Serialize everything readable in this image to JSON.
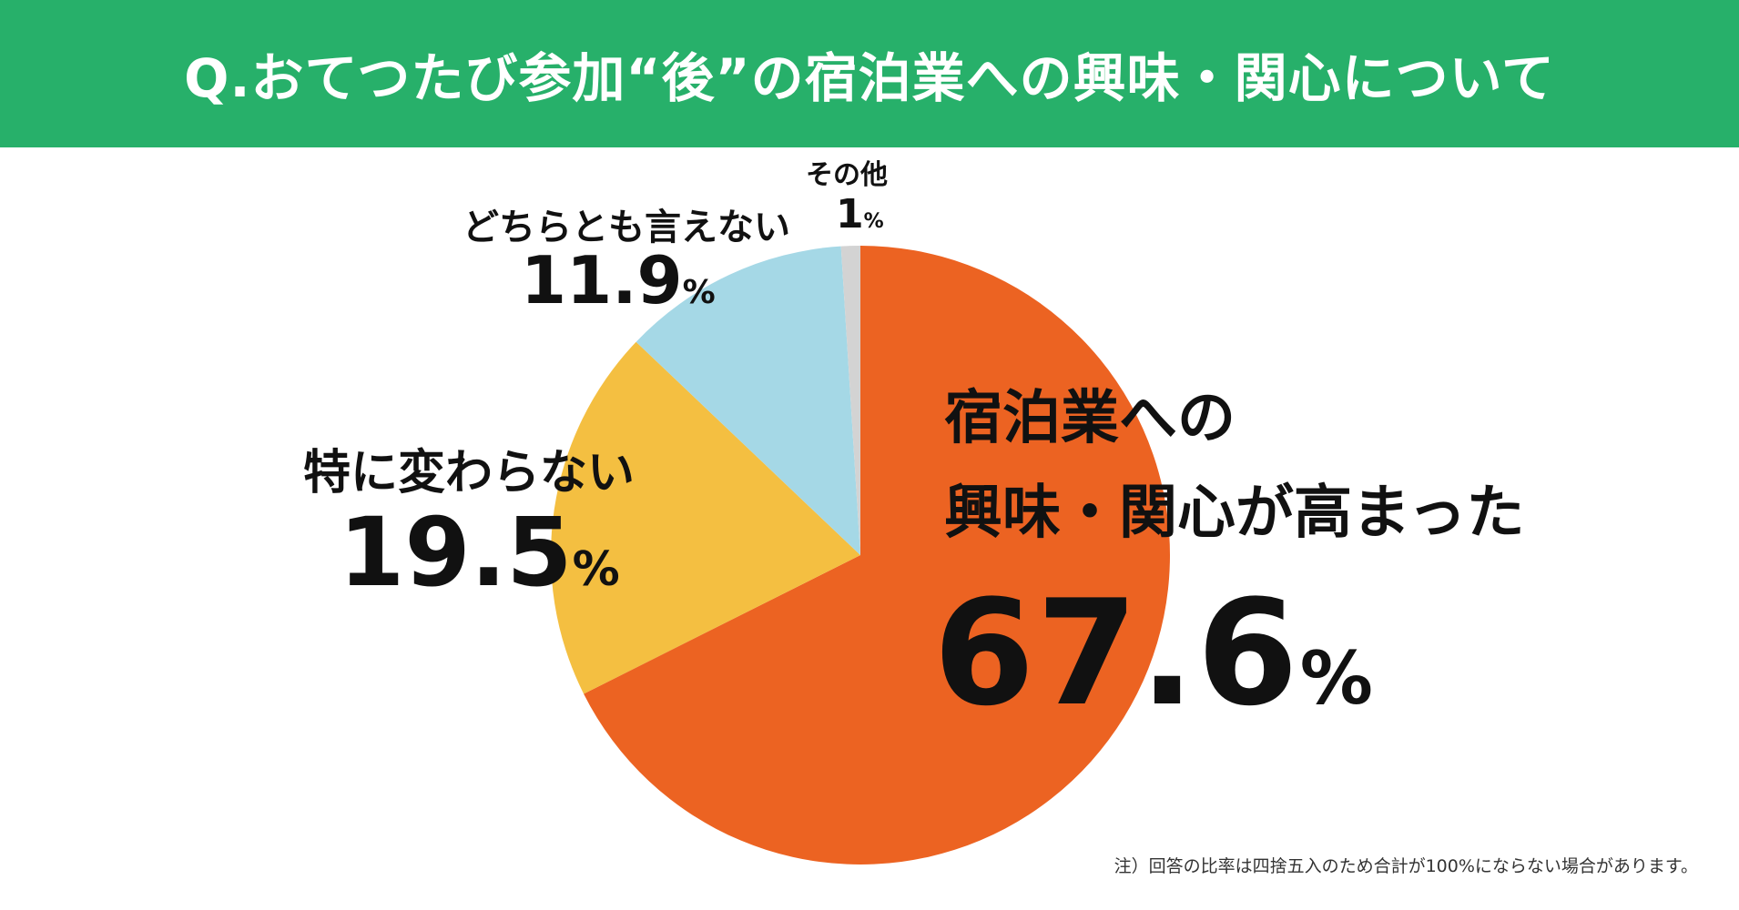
{
  "title": "Q.おてつたび参加“後”の宿泊業への興味・関心について",
  "note": "注）回答の比率は四捨五入のため合計が100%にならない場合があります。",
  "colors": {
    "header": "#27b06a",
    "slices": [
      "#ec6322",
      "#f4bf41",
      "#a5d8e6",
      "#d3d3d3"
    ]
  },
  "labels": {
    "interest_line1": "宿泊業への",
    "interest_line2": "興味・関心が高まった",
    "interest_value": "67.6",
    "unchanged_name": "特に変わらない",
    "unchanged_value": "19.5",
    "neutral_name": "どちらとも言えない",
    "neutral_value": "11.9",
    "other_name": "その他",
    "other_value": "1",
    "unit": "%"
  },
  "chart_data": {
    "type": "pie",
    "categories": [
      "宿泊業への興味・関心が高まった",
      "特に変わらない",
      "どちらとも言えない",
      "その他"
    ],
    "values": [
      67.6,
      19.5,
      11.9,
      1
    ],
    "unit": "%",
    "start": "12 o'clock",
    "direction": "clockwise"
  }
}
